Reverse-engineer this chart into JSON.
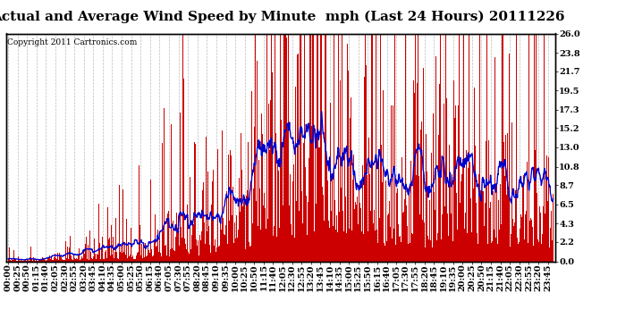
{
  "title": "Actual and Average Wind Speed by Minute  mph (Last 24 Hours) 20111226",
  "copyright": "Copyright 2011 Cartronics.com",
  "yticks": [
    0.0,
    2.2,
    4.3,
    6.5,
    8.7,
    10.8,
    13.0,
    15.2,
    17.3,
    19.5,
    21.7,
    23.8,
    26.0
  ],
  "ylim": [
    0.0,
    26.0
  ],
  "bar_color": "#cc0000",
  "line_color": "#0000cc",
  "background_color": "#ffffff",
  "grid_color": "#bbbbbb",
  "title_fontsize": 11,
  "copyright_fontsize": 6.5,
  "tick_fontsize": 7,
  "tick_interval_minutes": 25
}
